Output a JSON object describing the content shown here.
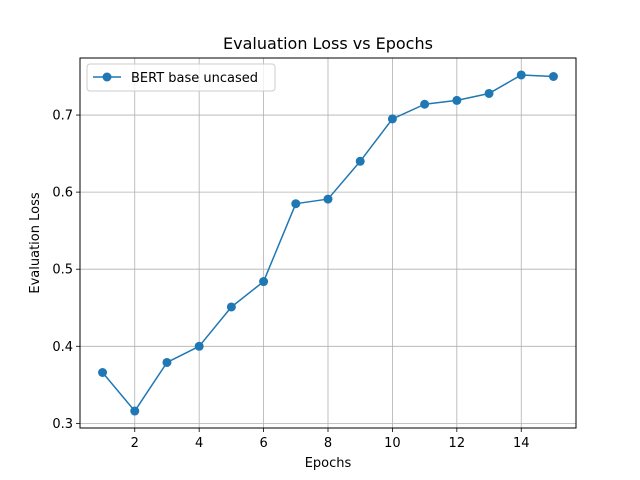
{
  "chart_data": {
    "type": "line",
    "title": "Evaluation Loss vs Epochs",
    "xlabel": "Epochs",
    "ylabel": "Evaluation Loss",
    "xlim": [
      0.3,
      15.7
    ],
    "ylim": [
      0.294,
      0.774
    ],
    "xticks": [
      2,
      4,
      6,
      8,
      10,
      12,
      14
    ],
    "yticks": [
      0.3,
      0.4,
      0.5,
      0.6,
      0.7
    ],
    "xtick_labels": [
      "2",
      "4",
      "6",
      "8",
      "10",
      "12",
      "14"
    ],
    "ytick_labels": [
      "0.3",
      "0.4",
      "0.5",
      "0.6",
      "0.7"
    ],
    "grid": true,
    "legend_position": "top-left",
    "series": [
      {
        "name": "BERT base uncased",
        "color": "#1f77b4",
        "marker": "circle",
        "x": [
          1,
          2,
          3,
          4,
          5,
          6,
          7,
          8,
          9,
          10,
          11,
          12,
          13,
          14,
          15
        ],
        "y": [
          0.366,
          0.316,
          0.379,
          0.4,
          0.451,
          0.484,
          0.585,
          0.591,
          0.64,
          0.695,
          0.714,
          0.719,
          0.728,
          0.752,
          0.75
        ]
      }
    ]
  }
}
